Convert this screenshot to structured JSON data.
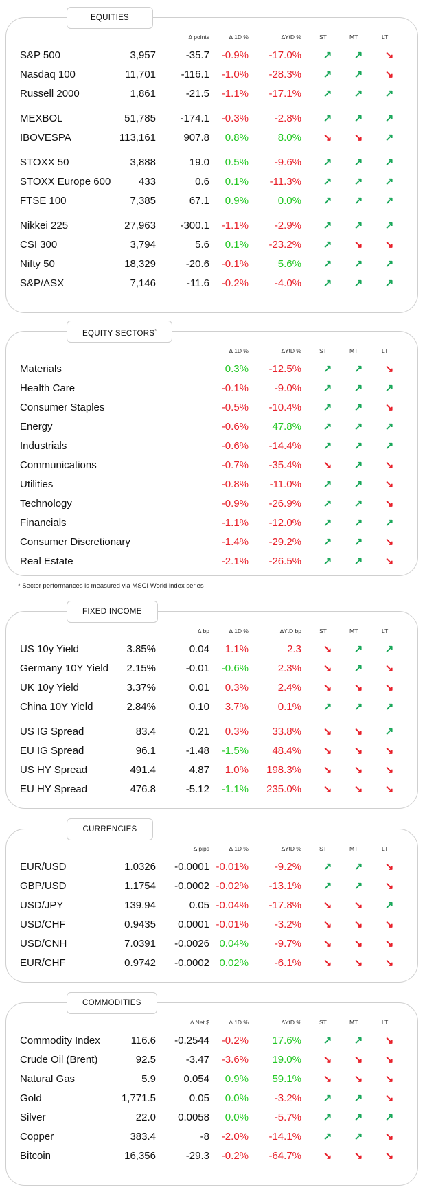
{
  "colors": {
    "positive": "#22c722",
    "negative": "#e8202a",
    "arrow_up": "#1aa85a",
    "arrow_down": "#e8202a"
  },
  "equities": {
    "title": "EQUITIES",
    "headers": {
      "pts": "∆ points",
      "d1": "∆ 1D %",
      "ytd": "∆YtD %",
      "st": "ST",
      "mt": "MT",
      "lt": "LT"
    },
    "groups": [
      [
        {
          "name": "S&P 500",
          "value": "3,957",
          "pts": "-35.7",
          "d1": "-0.9%",
          "ytd": "-17.0%",
          "st": "up",
          "mt": "up",
          "lt": "down"
        },
        {
          "name": "Nasdaq 100",
          "value": "11,701",
          "pts": "-116.1",
          "d1": "-1.0%",
          "ytd": "-28.3%",
          "st": "up",
          "mt": "up",
          "lt": "down"
        },
        {
          "name": "Russell 2000",
          "value": "1,861",
          "pts": "-21.5",
          "d1": "-1.1%",
          "ytd": "-17.1%",
          "st": "up",
          "mt": "up",
          "lt": "up"
        }
      ],
      [
        {
          "name": "MEXBOL",
          "value": "51,785",
          "pts": "-174.1",
          "d1": "-0.3%",
          "ytd": "-2.8%",
          "st": "up",
          "mt": "up",
          "lt": "up"
        },
        {
          "name": "IBOVESPA",
          "value": "113,161",
          "pts": "907.8",
          "d1": "0.8%",
          "ytd": "8.0%",
          "st": "down",
          "mt": "down",
          "lt": "up"
        }
      ],
      [
        {
          "name": "STOXX 50",
          "value": "3,888",
          "pts": "19.0",
          "d1": "0.5%",
          "ytd": "-9.6%",
          "st": "up",
          "mt": "up",
          "lt": "up"
        },
        {
          "name": "STOXX Europe 600",
          "value": "433",
          "pts": "0.6",
          "d1": "0.1%",
          "ytd": "-11.3%",
          "st": "up",
          "mt": "up",
          "lt": "up"
        },
        {
          "name": "FTSE 100",
          "value": "7,385",
          "pts": "67.1",
          "d1": "0.9%",
          "ytd": "0.0%",
          "st": "up",
          "mt": "up",
          "lt": "up"
        }
      ],
      [
        {
          "name": "Nikkei 225",
          "value": "27,963",
          "pts": "-300.1",
          "d1": "-1.1%",
          "ytd": "-2.9%",
          "st": "up",
          "mt": "up",
          "lt": "up"
        },
        {
          "name": "CSI 300",
          "value": "3,794",
          "pts": "5.6",
          "d1": "0.1%",
          "ytd": "-23.2%",
          "st": "up",
          "mt": "down",
          "lt": "down"
        },
        {
          "name": "Nifty 50",
          "value": "18,329",
          "pts": "-20.6",
          "d1": "-0.1%",
          "ytd": "5.6%",
          "st": "up",
          "mt": "up",
          "lt": "up"
        },
        {
          "name": "S&P/ASX",
          "value": "7,146",
          "pts": "-11.6",
          "d1": "-0.2%",
          "ytd": "-4.0%",
          "st": "up",
          "mt": "up",
          "lt": "up"
        }
      ]
    ]
  },
  "sectors": {
    "title": "EQUITY SECTORS",
    "title_sup": "*",
    "headers": {
      "d1": "∆ 1D %",
      "ytd": "∆YtD %",
      "st": "ST",
      "mt": "MT",
      "lt": "LT"
    },
    "rows": [
      {
        "name": "Materials",
        "d1": "0.3%",
        "ytd": "-12.5%",
        "st": "up",
        "mt": "up",
        "lt": "down"
      },
      {
        "name": "Health Care",
        "d1": "-0.1%",
        "ytd": "-9.0%",
        "st": "up",
        "mt": "up",
        "lt": "up"
      },
      {
        "name": "Consumer Staples",
        "d1": "-0.5%",
        "ytd": "-10.4%",
        "st": "up",
        "mt": "up",
        "lt": "down"
      },
      {
        "name": "Energy",
        "d1": "-0.6%",
        "ytd": "47.8%",
        "st": "up",
        "mt": "up",
        "lt": "up"
      },
      {
        "name": "Industrials",
        "d1": "-0.6%",
        "ytd": "-14.4%",
        "st": "up",
        "mt": "up",
        "lt": "up"
      },
      {
        "name": "Communications",
        "d1": "-0.7%",
        "ytd": "-35.4%",
        "st": "down",
        "mt": "up",
        "lt": "down"
      },
      {
        "name": "Utilities",
        "d1": "-0.8%",
        "ytd": "-11.0%",
        "st": "up",
        "mt": "up",
        "lt": "down"
      },
      {
        "name": "Technology",
        "d1": "-0.9%",
        "ytd": "-26.9%",
        "st": "up",
        "mt": "up",
        "lt": "down"
      },
      {
        "name": "Financials",
        "d1": "-1.1%",
        "ytd": "-12.0%",
        "st": "up",
        "mt": "up",
        "lt": "up"
      },
      {
        "name": "Consumer Discretionary",
        "d1": "-1.4%",
        "ytd": "-29.2%",
        "st": "up",
        "mt": "up",
        "lt": "down"
      },
      {
        "name": "Real Estate",
        "d1": "-2.1%",
        "ytd": "-26.5%",
        "st": "up",
        "mt": "up",
        "lt": "down"
      }
    ],
    "footnote": "* Sector performances is measured via MSCI World index series"
  },
  "fixed_income": {
    "title": "FIXED INCOME",
    "headers": {
      "pts": "∆ bp",
      "d1": "∆ 1D %",
      "ytd": "∆YtD bp",
      "st": "ST",
      "mt": "MT",
      "lt": "LT"
    },
    "groups": [
      [
        {
          "name": "US 10y Yield",
          "value": "3.85%",
          "pts": "0.04",
          "d1": "1.1%",
          "ytd": "2.3",
          "st": "down",
          "mt": "up",
          "lt": "up"
        },
        {
          "name": "Germany 10Y Yield",
          "value": "2.15%",
          "pts": "-0.01",
          "d1": "-0.6%",
          "ytd": "2.3%",
          "st": "down",
          "mt": "up",
          "lt": "down"
        },
        {
          "name": "UK 10y Yield",
          "value": "3.37%",
          "pts": "0.01",
          "d1": "0.3%",
          "ytd": "2.4%",
          "st": "down",
          "mt": "down",
          "lt": "down"
        },
        {
          "name": "China 10Y Yield",
          "value": "2.84%",
          "pts": "0.10",
          "d1": "3.7%",
          "ytd": "0.1%",
          "st": "up",
          "mt": "up",
          "lt": "up"
        }
      ],
      [
        {
          "name": "US IG Spread",
          "value": "83.4",
          "pts": "0.21",
          "d1": "0.3%",
          "ytd": "33.8%",
          "st": "down",
          "mt": "down",
          "lt": "up"
        },
        {
          "name": "EU IG Spread",
          "value": "96.1",
          "pts": "-1.48",
          "d1": "-1.5%",
          "ytd": "48.4%",
          "st": "down",
          "mt": "down",
          "lt": "down"
        },
        {
          "name": "US HY Spread",
          "value": "491.4",
          "pts": "4.87",
          "d1": "1.0%",
          "ytd": "198.3%",
          "st": "down",
          "mt": "down",
          "lt": "down"
        },
        {
          "name": "EU HY Spread",
          "value": "476.8",
          "pts": "-5.12",
          "d1": "-1.1%",
          "ytd": "235.0%",
          "st": "down",
          "mt": "down",
          "lt": "down"
        }
      ]
    ]
  },
  "currencies": {
    "title": "CURRENCIES",
    "headers": {
      "pts": "∆ pips",
      "d1": "∆ 1D %",
      "ytd": "∆YtD %",
      "st": "ST",
      "mt": "MT",
      "lt": "LT"
    },
    "rows": [
      {
        "name": "EUR/USD",
        "value": "1.0326",
        "pts": "-0.0001",
        "d1": "-0.01%",
        "ytd": "-9.2%",
        "st": "up",
        "mt": "up",
        "lt": "down"
      },
      {
        "name": "GBP/USD",
        "value": "1.1754",
        "pts": "-0.0002",
        "d1": "-0.02%",
        "ytd": "-13.1%",
        "st": "up",
        "mt": "up",
        "lt": "down"
      },
      {
        "name": "USD/JPY",
        "value": "139.94",
        "pts": "0.05",
        "d1": "-0.04%",
        "ytd": "-17.8%",
        "st": "down",
        "mt": "down",
        "lt": "up"
      },
      {
        "name": "USD/CHF",
        "value": "0.9435",
        "pts": "0.0001",
        "d1": "-0.01%",
        "ytd": "-3.2%",
        "st": "down",
        "mt": "down",
        "lt": "down"
      },
      {
        "name": "USD/CNH",
        "value": "7.0391",
        "pts": "-0.0026",
        "d1": "0.04%",
        "ytd": "-9.7%",
        "st": "down",
        "mt": "down",
        "lt": "down"
      },
      {
        "name": "EUR/CHF",
        "value": "0.9742",
        "pts": "-0.0002",
        "d1": "0.02%",
        "ytd": "-6.1%",
        "st": "down",
        "mt": "down",
        "lt": "down"
      }
    ]
  },
  "commodities": {
    "title": "COMMODITIES",
    "headers": {
      "pts": "∆ Net $",
      "d1": "∆ 1D %",
      "ytd": "∆YtD %",
      "st": "ST",
      "mt": "MT",
      "lt": "LT"
    },
    "rows": [
      {
        "name": "Commodity Index",
        "value": "116.6",
        "pts": "-0.2544",
        "d1": "-0.2%",
        "ytd": "17.6%",
        "st": "up",
        "mt": "up",
        "lt": "down"
      },
      {
        "name": "Crude Oil (Brent)",
        "value": "92.5",
        "pts": "-3.47",
        "d1": "-3.6%",
        "ytd": "19.0%",
        "st": "down",
        "mt": "down",
        "lt": "down"
      },
      {
        "name": "Natural Gas",
        "value": "5.9",
        "pts": "0.054",
        "d1": "0.9%",
        "ytd": "59.1%",
        "st": "down",
        "mt": "down",
        "lt": "down"
      },
      {
        "name": "Gold",
        "value": "1,771.5",
        "pts": "0.05",
        "d1": "0.0%",
        "ytd": "-3.2%",
        "st": "up",
        "mt": "up",
        "lt": "down"
      },
      {
        "name": "Silver",
        "value": "22.0",
        "pts": "0.0058",
        "d1": "0.0%",
        "ytd": "-5.7%",
        "st": "up",
        "mt": "up",
        "lt": "up"
      },
      {
        "name": "Copper",
        "value": "383.4",
        "pts": "-8",
        "d1": "-2.0%",
        "ytd": "-14.1%",
        "st": "up",
        "mt": "up",
        "lt": "down"
      },
      {
        "name": "Bitcoin",
        "value": "16,356",
        "pts": "-29.3",
        "d1": "-0.2%",
        "ytd": "-64.7%",
        "st": "down",
        "mt": "down",
        "lt": "down"
      }
    ]
  }
}
